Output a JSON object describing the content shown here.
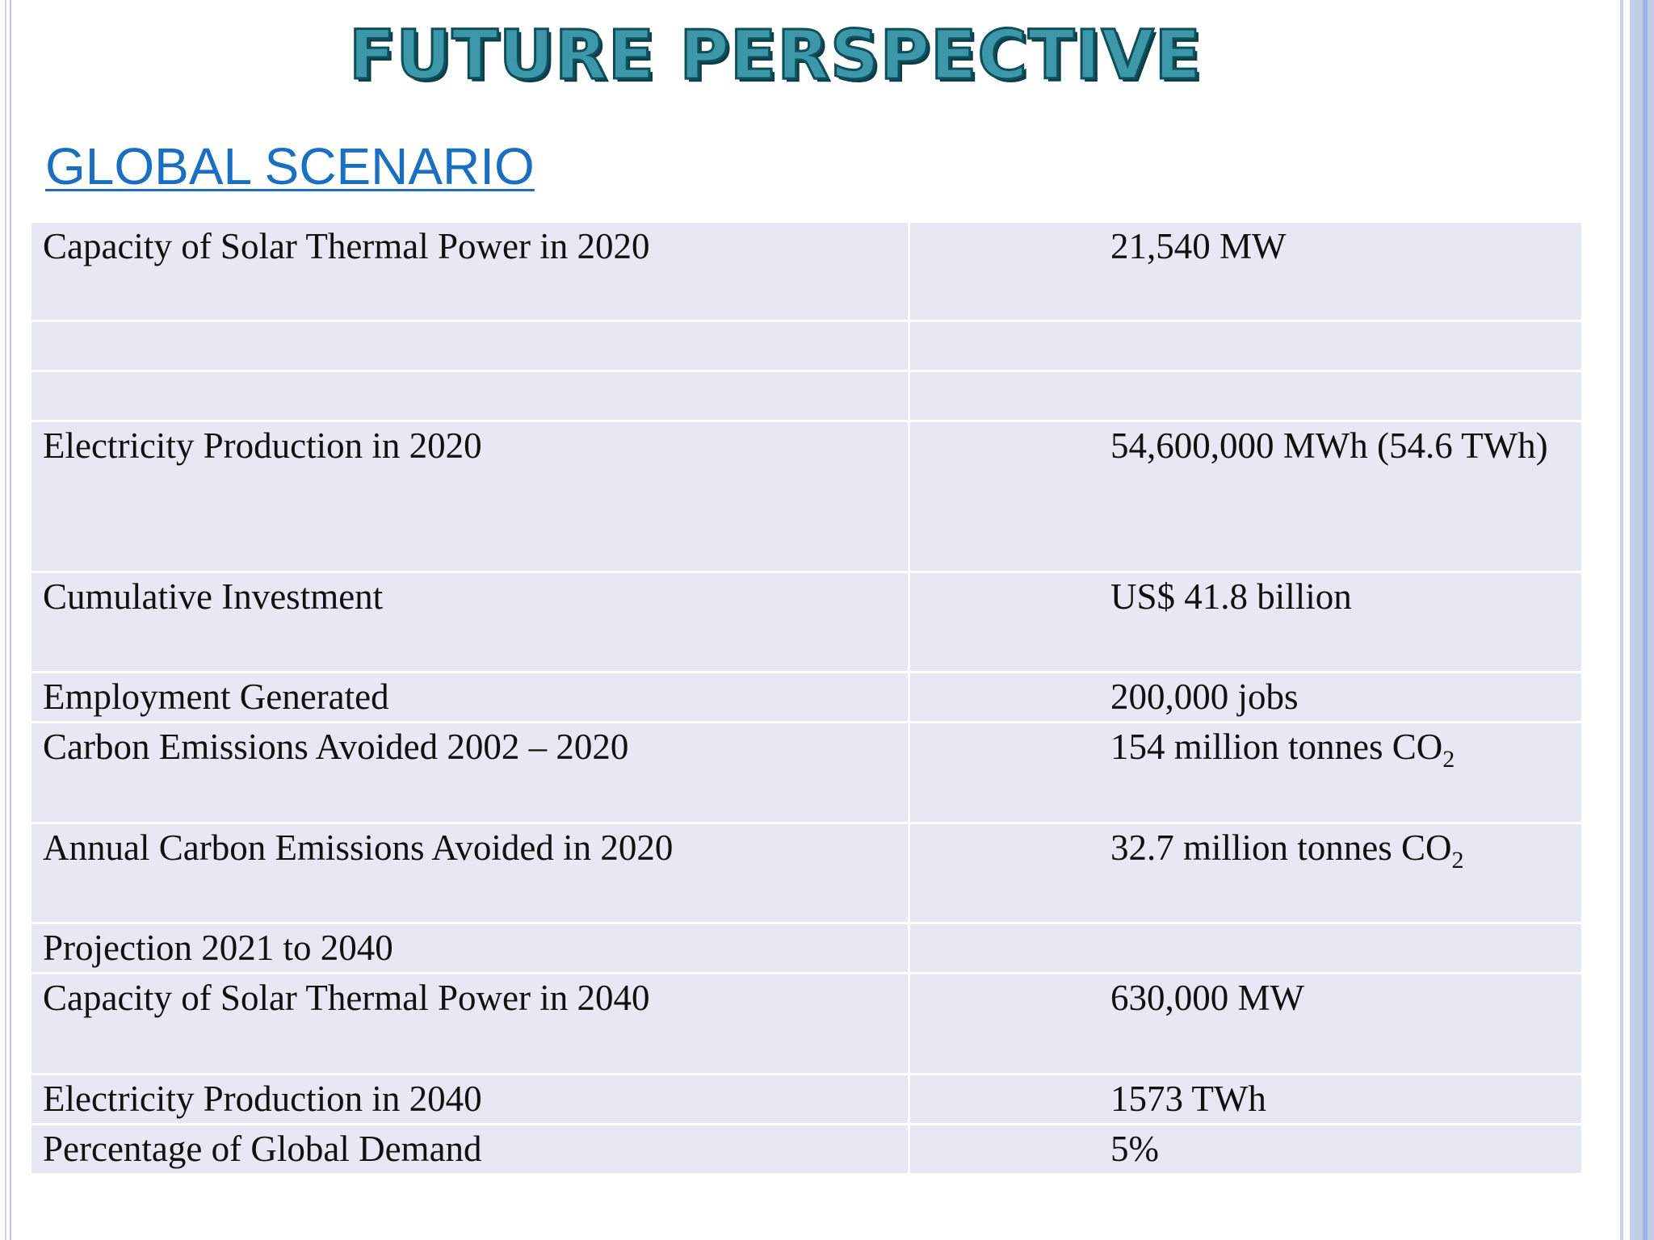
{
  "slide": {
    "title": "FUTURE PERSPECTIVE",
    "subtitle": "GLOBAL SCENARIO"
  },
  "table": {
    "rows": [
      {
        "label": "Capacity of Solar Thermal Power in 2020",
        "value": "21,540 MW",
        "sub": ""
      },
      {
        "label": "",
        "value": "",
        "sub": ""
      },
      {
        "label": "",
        "value": "",
        "sub": ""
      },
      {
        "label": "Electricity Production in 2020",
        "value": "54,600,000 MWh (54.6 TWh)",
        "sub": ""
      },
      {
        "label": "Cumulative Investment",
        "value": "US$ 41.8 billion",
        "sub": ""
      },
      {
        "label": "Employment Generated",
        "value": "200,000 jobs",
        "sub": ""
      },
      {
        "label": "Carbon Emissions Avoided 2002 – 2020",
        "value": "154 million tonnes CO",
        "sub": "2"
      },
      {
        "label": "Annual Carbon Emissions Avoided in 2020",
        "value": "32.7 million tonnes CO",
        "sub": "2"
      },
      {
        "label": "Projection 2021 to 2040",
        "value": "",
        "sub": ""
      },
      {
        "label": "Capacity of Solar Thermal Power in 2040",
        "value": "630,000 MW",
        "sub": ""
      },
      {
        "label": "Electricity Production in 2040",
        "value": "1573 TWh",
        "sub": ""
      },
      {
        "label": "Percentage of Global Demand",
        "value": "5%",
        "sub": ""
      }
    ]
  },
  "colors": {
    "title_fill": "#3c97a8",
    "title_outline": "#0f4f5c",
    "subtitle": "#1a6fc0",
    "cell_background": "#e6e9f3"
  }
}
